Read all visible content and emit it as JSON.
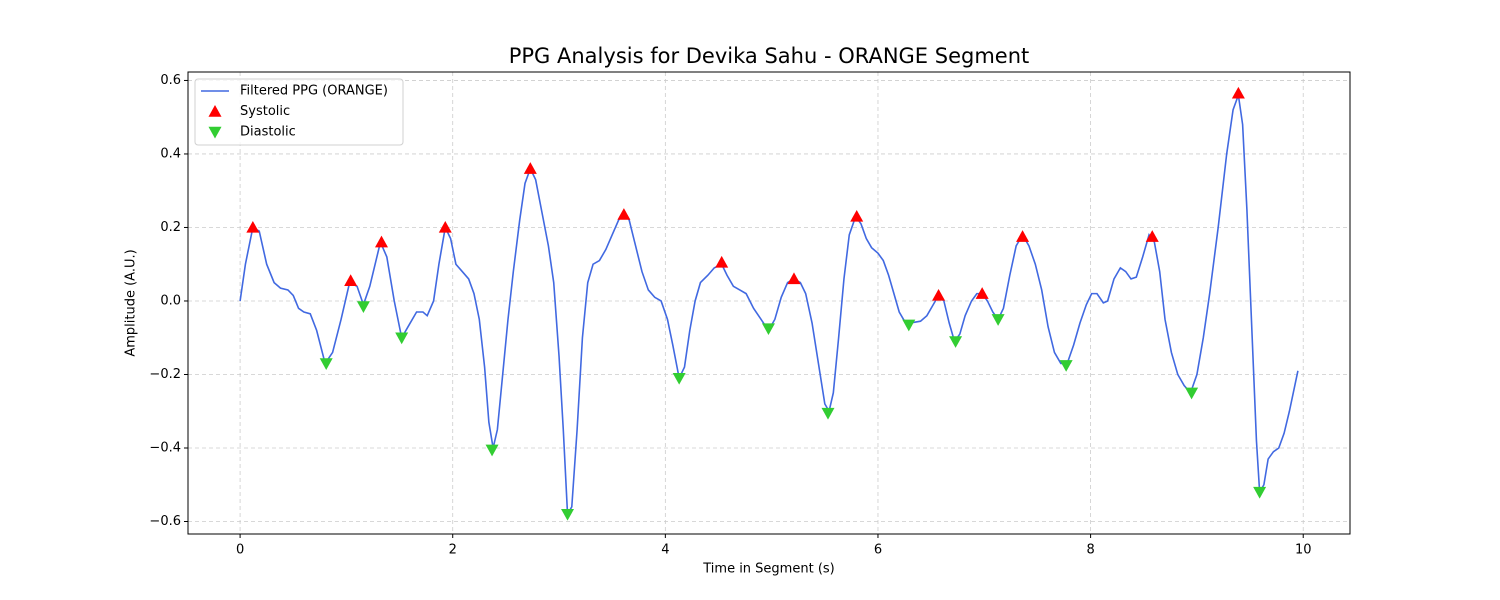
{
  "chart_data": {
    "type": "line",
    "title": "PPG Analysis for Devika Sahu - ORANGE Segment",
    "xlabel": "Time in Segment (s)",
    "ylabel": "Amplitude (A.U.)",
    "xlim": [
      -0.49,
      10.44
    ],
    "ylim": [
      -0.634,
      0.623
    ],
    "xticks": [
      0,
      2,
      4,
      6,
      8,
      10
    ],
    "yticks": [
      {
        "value": -0.6,
        "label": "−0.6"
      },
      {
        "value": -0.4,
        "label": "−0.4"
      },
      {
        "value": -0.2,
        "label": "−0.2"
      },
      {
        "value": 0,
        "label": "0.0"
      },
      0.2,
      0.4,
      0.6
    ],
    "grid": true,
    "legend": "upper left",
    "series": [
      {
        "name": "Filtered PPG (ORANGE)",
        "type": "line",
        "color": "#4169e1",
        "x": [
          0.0,
          0.05,
          0.12,
          0.18,
          0.25,
          0.32,
          0.38,
          0.45,
          0.5,
          0.55,
          0.6,
          0.66,
          0.72,
          0.8,
          0.87,
          0.95,
          1.03,
          1.1,
          1.16,
          1.22,
          1.32,
          1.38,
          1.45,
          1.52,
          1.58,
          1.66,
          1.72,
          1.76,
          1.82,
          1.87,
          1.93,
          1.98,
          2.03,
          2.09,
          2.15,
          2.2,
          2.25,
          2.3,
          2.34,
          2.38,
          2.42,
          2.47,
          2.52,
          2.57,
          2.63,
          2.68,
          2.73,
          2.78,
          2.84,
          2.9,
          2.95,
          3.0,
          3.04,
          3.08,
          3.12,
          3.17,
          3.22,
          3.27,
          3.32,
          3.38,
          3.44,
          3.5,
          3.56,
          3.61,
          3.66,
          3.72,
          3.78,
          3.84,
          3.9,
          3.96,
          4.02,
          4.07,
          4.13,
          4.18,
          4.23,
          4.28,
          4.33,
          4.4,
          4.46,
          4.53,
          4.58,
          4.64,
          4.7,
          4.76,
          4.83,
          4.9,
          4.97,
          5.03,
          5.09,
          5.15,
          5.21,
          5.27,
          5.32,
          5.38,
          5.44,
          5.5,
          5.54,
          5.58,
          5.63,
          5.68,
          5.73,
          5.79,
          5.84,
          5.89,
          5.94,
          6.0,
          6.05,
          6.1,
          6.15,
          6.2,
          6.25,
          6.3,
          6.4,
          6.46,
          6.52,
          6.57,
          6.62,
          6.67,
          6.72,
          6.77,
          6.82,
          6.88,
          6.93,
          6.98,
          7.03,
          7.08,
          7.13,
          7.18,
          7.24,
          7.3,
          7.36,
          7.42,
          7.48,
          7.54,
          7.6,
          7.66,
          7.72,
          7.78,
          7.84,
          7.9,
          7.96,
          8.01,
          8.06,
          8.12,
          8.16,
          8.22,
          8.28,
          8.33,
          8.38,
          8.43,
          8.49,
          8.55,
          8.6,
          8.65,
          8.7,
          8.76,
          8.82,
          8.88,
          8.94,
          9.0,
          9.06,
          9.12,
          9.2,
          9.28,
          9.34,
          9.39,
          9.43,
          9.47,
          9.52,
          9.56,
          9.59,
          9.63,
          9.67,
          9.72,
          9.77,
          9.82,
          9.87,
          9.95
        ],
        "values": [
          0.0,
          0.1,
          0.2,
          0.19,
          0.1,
          0.05,
          0.035,
          0.03,
          0.015,
          -0.02,
          -0.03,
          -0.035,
          -0.08,
          -0.17,
          -0.14,
          -0.05,
          0.05,
          0.04,
          -0.01,
          0.04,
          0.16,
          0.12,
          0.0,
          -0.1,
          -0.07,
          -0.03,
          -0.03,
          -0.04,
          0.0,
          0.1,
          0.2,
          0.17,
          0.1,
          0.08,
          0.06,
          0.02,
          -0.05,
          -0.18,
          -0.33,
          -0.4,
          -0.35,
          -0.2,
          -0.05,
          0.08,
          0.22,
          0.32,
          0.36,
          0.33,
          0.24,
          0.15,
          0.05,
          -0.15,
          -0.35,
          -0.58,
          -0.56,
          -0.35,
          -0.1,
          0.05,
          0.1,
          0.11,
          0.14,
          0.18,
          0.22,
          0.24,
          0.22,
          0.15,
          0.08,
          0.03,
          0.01,
          0.0,
          -0.05,
          -0.12,
          -0.21,
          -0.18,
          -0.08,
          0.0,
          0.05,
          0.07,
          0.09,
          0.1,
          0.07,
          0.04,
          0.03,
          0.02,
          -0.02,
          -0.05,
          -0.08,
          -0.05,
          0.01,
          0.05,
          0.06,
          0.05,
          0.02,
          -0.06,
          -0.17,
          -0.28,
          -0.3,
          -0.25,
          -0.1,
          0.06,
          0.18,
          0.23,
          0.21,
          0.17,
          0.145,
          0.13,
          0.11,
          0.07,
          0.02,
          -0.03,
          -0.055,
          -0.06,
          -0.055,
          -0.04,
          -0.01,
          0.015,
          0.0,
          -0.06,
          -0.11,
          -0.09,
          -0.04,
          0.0,
          0.02,
          0.02,
          0.0,
          -0.03,
          -0.05,
          -0.02,
          0.07,
          0.15,
          0.18,
          0.15,
          0.1,
          0.03,
          -0.07,
          -0.14,
          -0.17,
          -0.17,
          -0.12,
          -0.06,
          -0.01,
          0.02,
          0.02,
          -0.005,
          0.0,
          0.06,
          0.09,
          0.08,
          0.06,
          0.065,
          0.12,
          0.18,
          0.16,
          0.08,
          -0.05,
          -0.14,
          -0.2,
          -0.23,
          -0.25,
          -0.2,
          -0.1,
          0.02,
          0.2,
          0.4,
          0.52,
          0.56,
          0.48,
          0.25,
          -0.1,
          -0.38,
          -0.52,
          -0.5,
          -0.43,
          -0.41,
          -0.4,
          -0.36,
          -0.3,
          -0.19
        ]
      },
      {
        "name": "Systolic",
        "type": "scatter",
        "marker": "triangle-up",
        "color": "#ff0000",
        "x": [
          0.12,
          1.04,
          1.33,
          1.93,
          2.73,
          3.61,
          4.53,
          5.21,
          5.8,
          6.57,
          6.98,
          7.36,
          8.58,
          9.39
        ],
        "values": [
          0.2,
          0.055,
          0.16,
          0.2,
          0.36,
          0.235,
          0.105,
          0.06,
          0.23,
          0.015,
          0.02,
          0.175,
          0.175,
          0.565
        ]
      },
      {
        "name": "Diastolic",
        "type": "scatter",
        "marker": "triangle-down",
        "color": "#32cd32",
        "x": [
          0.81,
          1.16,
          1.52,
          2.37,
          3.08,
          4.13,
          4.97,
          5.53,
          6.29,
          6.73,
          7.13,
          7.77,
          8.95,
          9.59
        ],
        "values": [
          -0.17,
          -0.015,
          -0.1,
          -0.405,
          -0.58,
          -0.21,
          -0.075,
          -0.305,
          -0.065,
          -0.11,
          -0.05,
          -0.175,
          -0.25,
          -0.52
        ]
      }
    ]
  }
}
